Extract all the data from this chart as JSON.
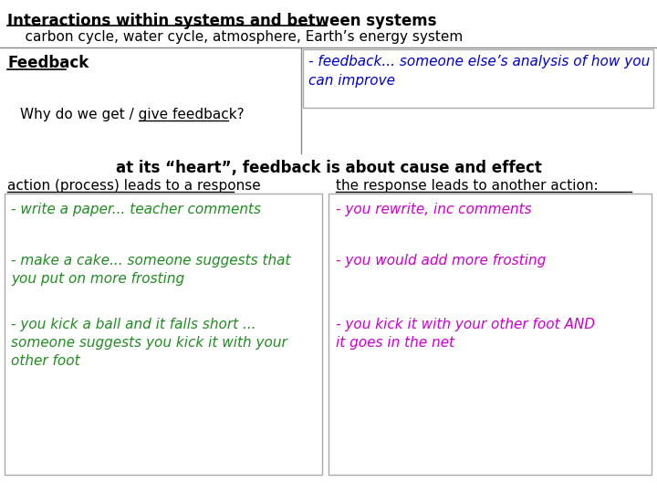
{
  "title": "Interactions within systems and between systems",
  "subtitle": "    carbon cycle, water cycle, atmosphere, Earth’s energy system",
  "feedback_label": "Feedback",
  "feedback_box_text": "- feedback... someone else’s analysis of how you\ncan improve",
  "why_text": "Why do we get / give feedback?",
  "heart_text": "at its “heart”, feedback is about cause and effect",
  "col1_header": "action (process) leads to a response",
  "col2_header": "the response leads to another action:",
  "col1_items": [
    "- write a paper... teacher comments",
    "- make a cake... someone suggests that\nyou put on more frosting",
    "- you kick a ball and it falls short ...\nsomeone suggests you kick it with your\nother foot"
  ],
  "col2_items": [
    "- you rewrite, inc comments",
    "- you would add more frosting",
    "- you kick it with your other foot AND\nit goes in the net"
  ],
  "color_title": "#000000",
  "color_subtitle": "#000000",
  "color_feedback_label": "#000000",
  "color_feedback_box": "#0000cc",
  "color_why": "#000000",
  "color_heart": "#000000",
  "color_col_header": "#000000",
  "color_col1_items": "#228B22",
  "color_col2_items": "#cc00cc",
  "bg_color": "#ffffff",
  "box_edge_color": "#aaaaaa"
}
